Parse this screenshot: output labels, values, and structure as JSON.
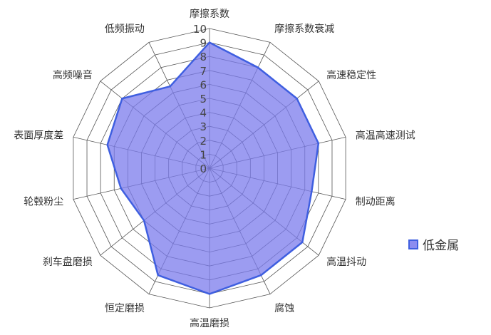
{
  "chart_data": {
    "type": "radar",
    "categories": [
      "摩擦系数",
      "摩擦系数衰减",
      "高速稳定性",
      "高温高速测试",
      "制动距离",
      "高温抖动",
      "腐蚀",
      "高温磨损",
      "恒定磨损",
      "刹车盘磨损",
      "轮毂粉尘",
      "表面厚度差",
      "高频噪音",
      "低频振动"
    ],
    "series": [
      {
        "name": "低金属",
        "values": [
          9,
          8,
          8,
          8,
          7.5,
          8.5,
          8.5,
          9,
          8.5,
          6,
          6.5,
          7.5,
          8,
          6.5
        ]
      }
    ],
    "rlim": [
      0,
      10
    ],
    "ticks": [
      "0",
      "1",
      "2",
      "3",
      "4",
      "5",
      "6",
      "7",
      "8",
      "9",
      "10"
    ],
    "grid": true,
    "legend": "right",
    "colors": {
      "fill": "#7b7bec",
      "line": "#3f5fe0",
      "grid": "#555555"
    }
  }
}
